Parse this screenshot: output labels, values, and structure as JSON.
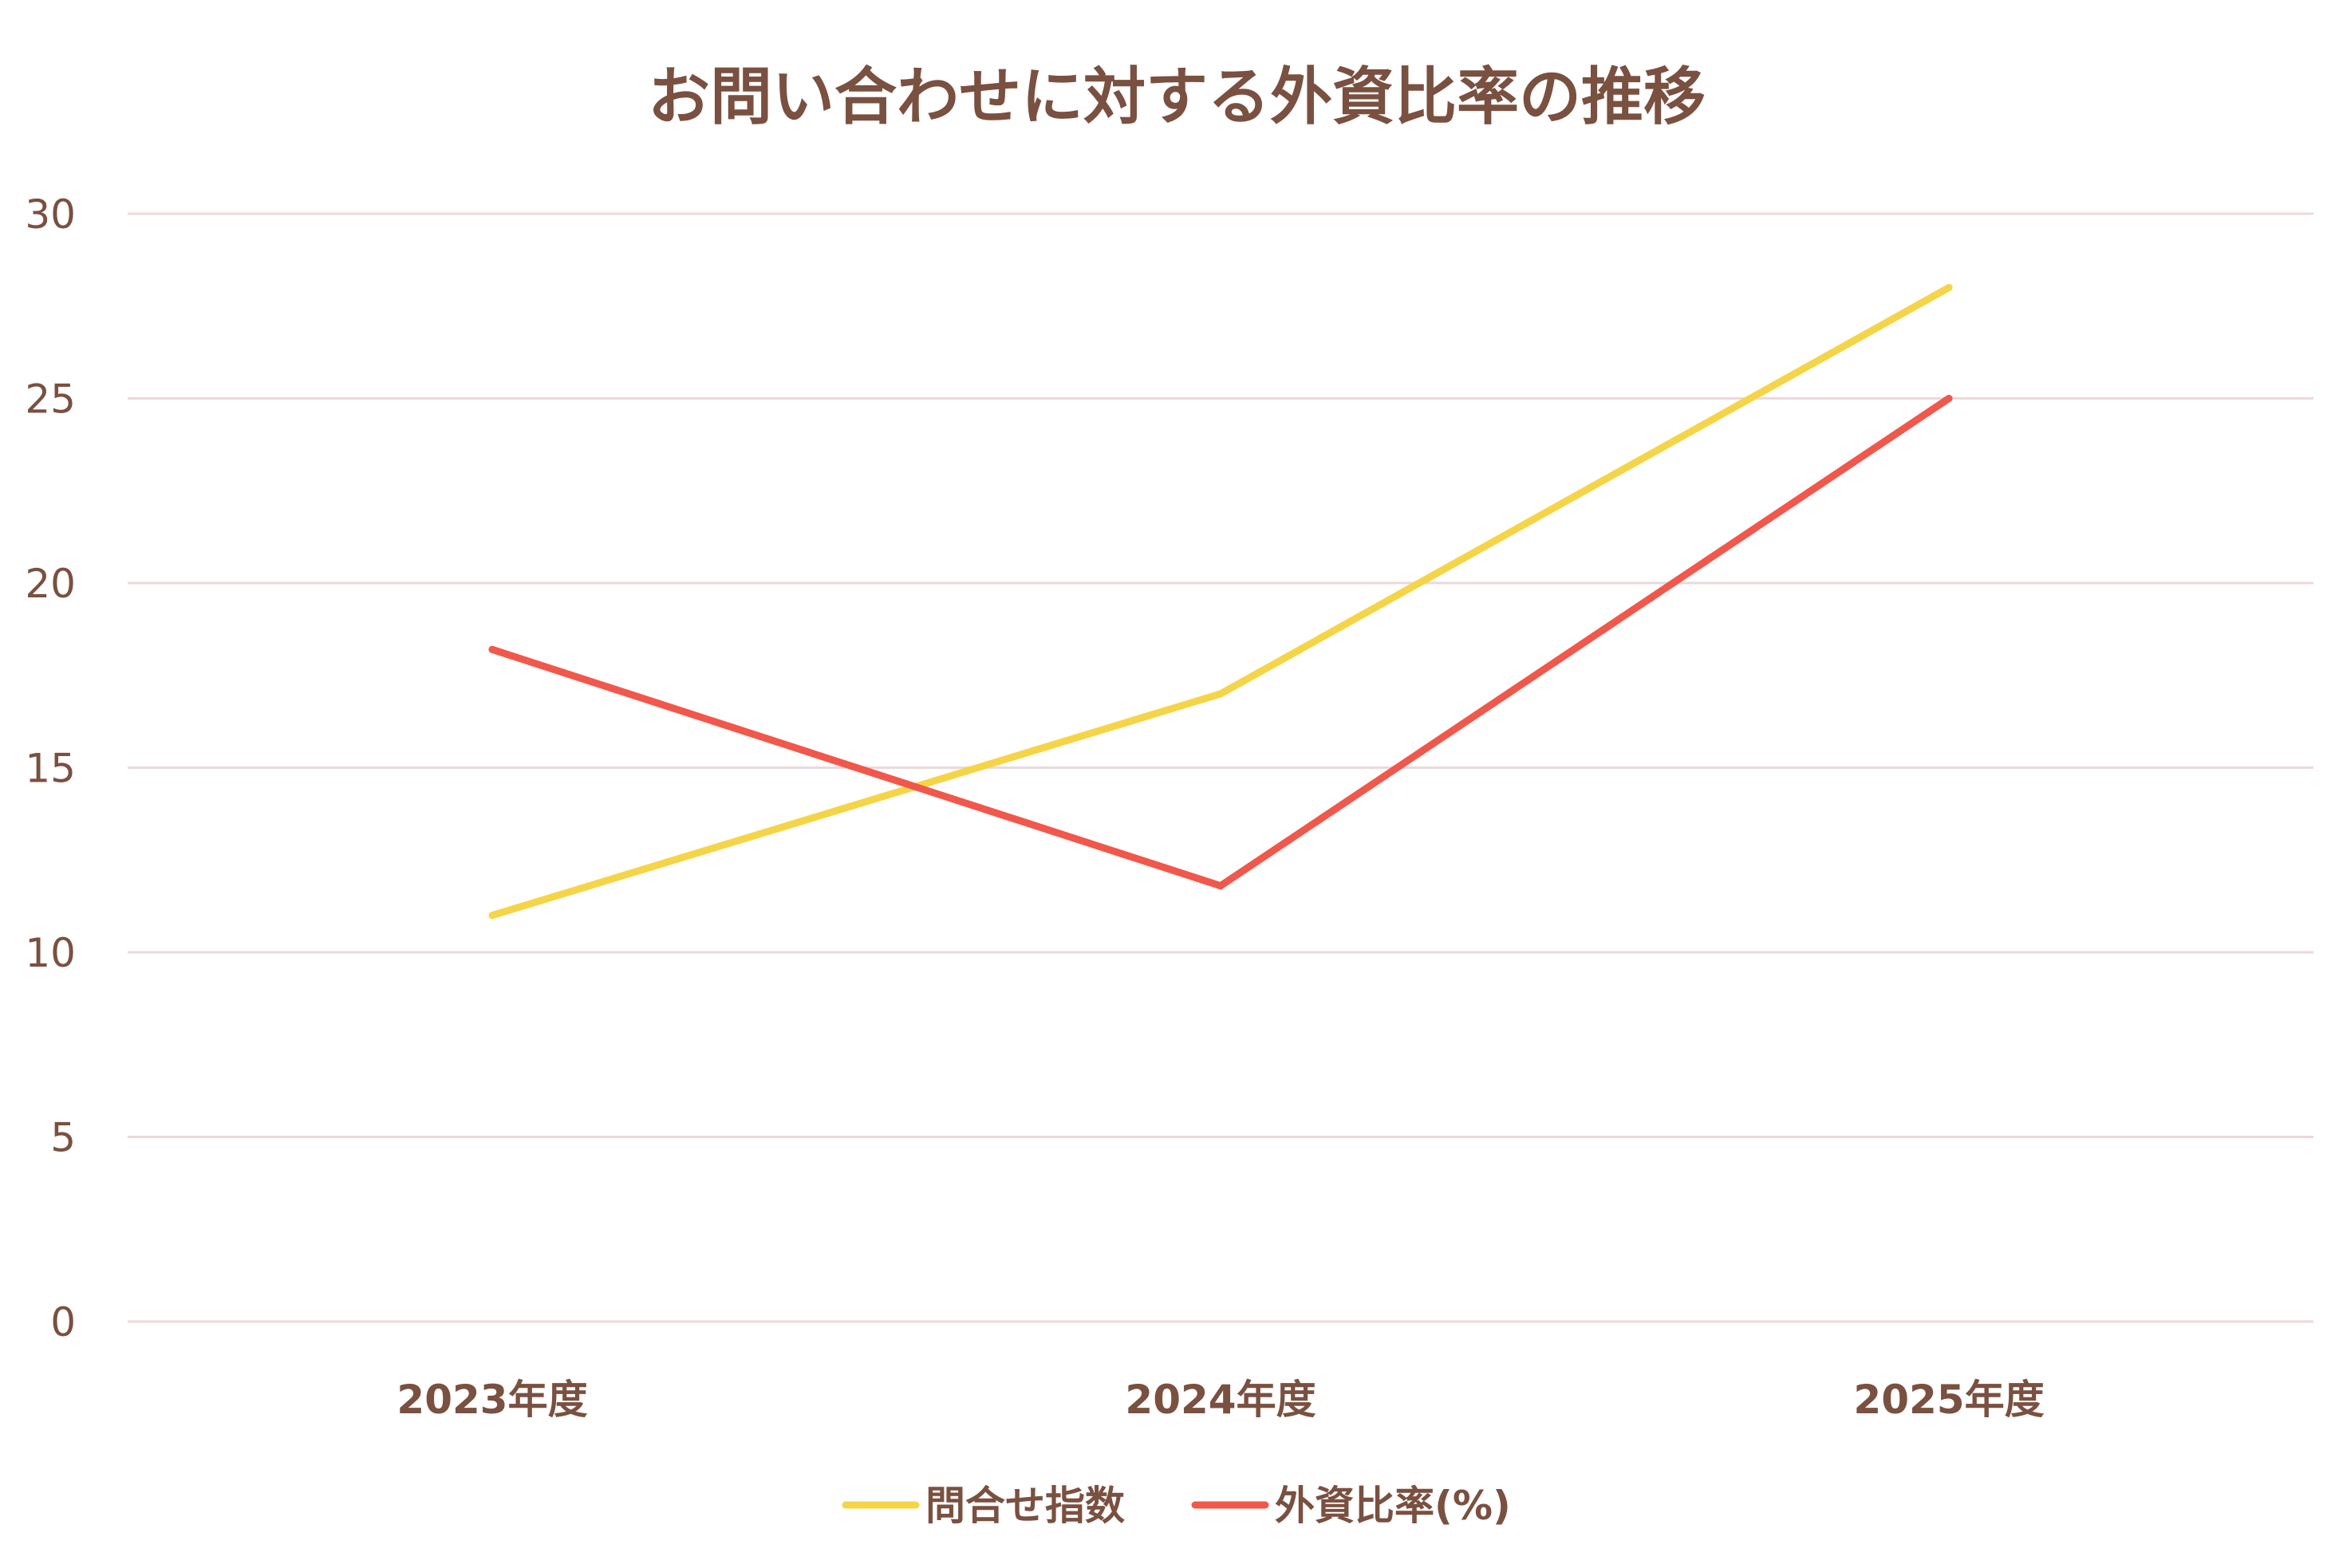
{
  "chart_data": {
    "type": "line",
    "title": "お問い合わせに対する外資比率の推移",
    "xlabel": "",
    "ylabel": "",
    "categories": [
      "2023年度",
      "2024年度",
      "2025年度"
    ],
    "ylim": [
      0,
      30
    ],
    "yticks": [
      0,
      5,
      10,
      15,
      20,
      25,
      30
    ],
    "grid": true,
    "legend_position": "bottom",
    "series": [
      {
        "name": "問合せ指数",
        "values": [
          11,
          17,
          28
        ],
        "color": "#f5d547"
      },
      {
        "name": "外資比率(%)",
        "values": [
          18.2,
          11.8,
          25
        ],
        "color": "#f2574b"
      }
    ]
  }
}
